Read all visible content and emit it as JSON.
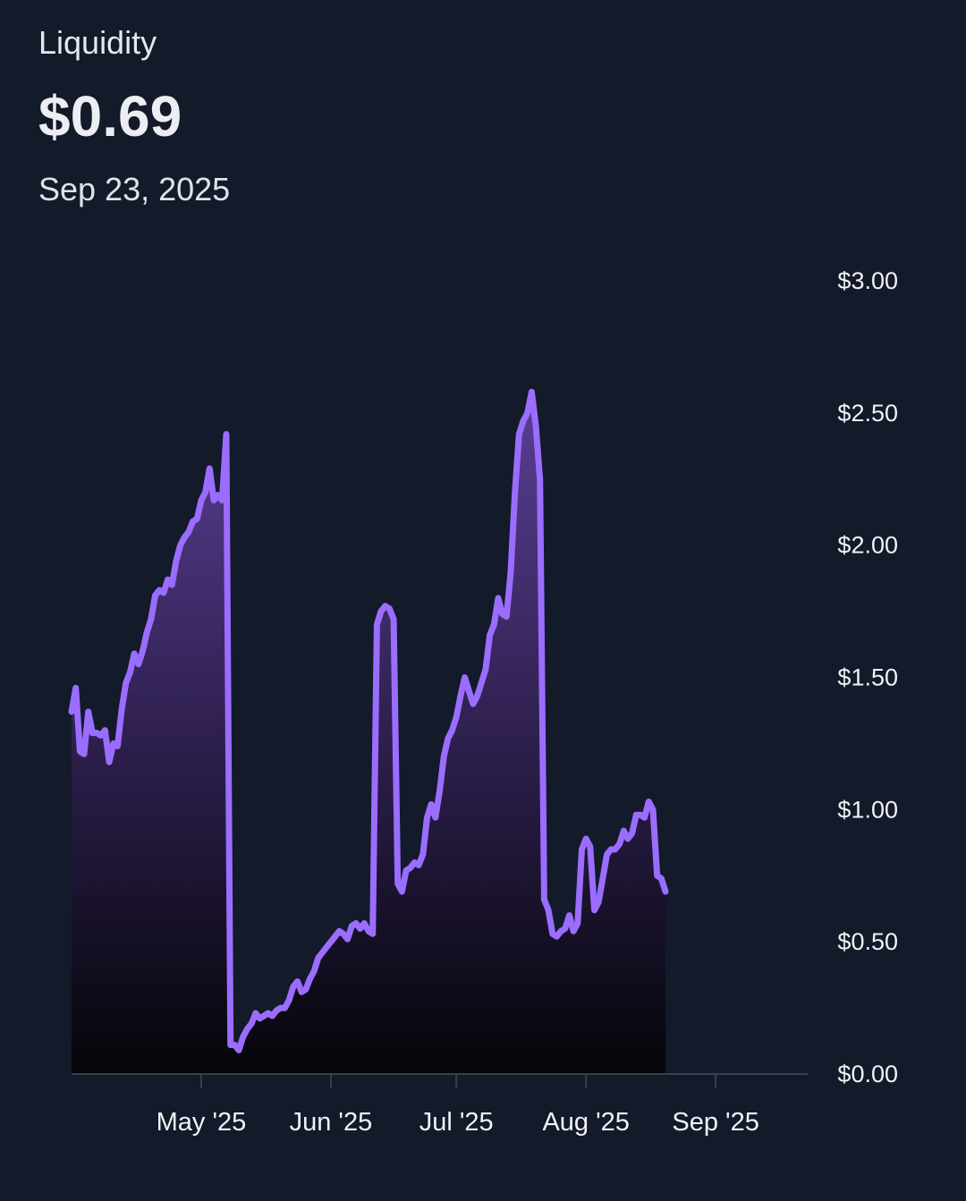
{
  "header": {
    "label": "Liquidity",
    "value": "$0.69",
    "date": "Sep 23, 2025"
  },
  "colors": {
    "background": "#131a2a",
    "line": "#9b6dff",
    "fill_top": "#5a3f94",
    "fill_bottom": "#050509",
    "axis": "#3a3f4b"
  },
  "chart_data": {
    "type": "area",
    "title": "",
    "xlabel": "",
    "ylabel": "",
    "ylim": [
      0,
      3
    ],
    "y_ticks": [
      "$0.00",
      "$0.50",
      "$1.00",
      "$1.50",
      "$2.00",
      "$2.50",
      "$3.00"
    ],
    "y_tick_values": [
      0,
      0.5,
      1,
      1.5,
      2,
      2.5,
      3
    ],
    "x_range": [
      "2025-03-31",
      "2025-09-23"
    ],
    "x_ticks": [
      {
        "date": "2025-05-01",
        "label": "May '25"
      },
      {
        "date": "2025-06-01",
        "label": "Jun '25"
      },
      {
        "date": "2025-07-01",
        "label": "Jul '25"
      },
      {
        "date": "2025-08-01",
        "label": "Aug '25"
      },
      {
        "date": "2025-09-01",
        "label": "Sep '25"
      }
    ],
    "grid": false,
    "series": [
      {
        "points": [
          [
            "2025-03-31",
            1.37
          ],
          [
            "2025-04-01",
            1.46
          ],
          [
            "2025-04-02",
            1.22
          ],
          [
            "2025-04-03",
            1.21
          ],
          [
            "2025-04-04",
            1.37
          ],
          [
            "2025-04-05",
            1.29
          ],
          [
            "2025-04-06",
            1.29
          ],
          [
            "2025-04-07",
            1.28
          ],
          [
            "2025-04-08",
            1.3
          ],
          [
            "2025-04-09",
            1.18
          ],
          [
            "2025-04-10",
            1.25
          ],
          [
            "2025-04-11",
            1.24
          ],
          [
            "2025-04-12",
            1.38
          ],
          [
            "2025-04-13",
            1.48
          ],
          [
            "2025-04-14",
            1.52
          ],
          [
            "2025-04-15",
            1.59
          ],
          [
            "2025-04-16",
            1.55
          ],
          [
            "2025-04-17",
            1.6
          ],
          [
            "2025-04-18",
            1.67
          ],
          [
            "2025-04-19",
            1.72
          ],
          [
            "2025-04-20",
            1.81
          ],
          [
            "2025-04-21",
            1.83
          ],
          [
            "2025-04-22",
            1.82
          ],
          [
            "2025-04-23",
            1.87
          ],
          [
            "2025-04-24",
            1.85
          ],
          [
            "2025-04-25",
            1.94
          ],
          [
            "2025-04-26",
            2.0
          ],
          [
            "2025-04-27",
            2.03
          ],
          [
            "2025-04-28",
            2.05
          ],
          [
            "2025-04-29",
            2.09
          ],
          [
            "2025-04-30",
            2.1
          ],
          [
            "2025-05-01",
            2.17
          ],
          [
            "2025-05-02",
            2.2
          ],
          [
            "2025-05-03",
            2.29
          ],
          [
            "2025-05-04",
            2.17
          ],
          [
            "2025-05-05",
            2.19
          ],
          [
            "2025-05-06",
            2.17
          ],
          [
            "2025-05-07",
            2.42
          ],
          [
            "2025-05-08",
            0.11
          ],
          [
            "2025-05-09",
            0.11
          ],
          [
            "2025-05-10",
            0.09
          ],
          [
            "2025-05-11",
            0.14
          ],
          [
            "2025-05-12",
            0.17
          ],
          [
            "2025-05-13",
            0.19
          ],
          [
            "2025-05-14",
            0.23
          ],
          [
            "2025-05-15",
            0.21
          ],
          [
            "2025-05-16",
            0.22
          ],
          [
            "2025-05-17",
            0.23
          ],
          [
            "2025-05-18",
            0.22
          ],
          [
            "2025-05-19",
            0.24
          ],
          [
            "2025-05-20",
            0.25
          ],
          [
            "2025-05-21",
            0.25
          ],
          [
            "2025-05-22",
            0.28
          ],
          [
            "2025-05-23",
            0.33
          ],
          [
            "2025-05-24",
            0.35
          ],
          [
            "2025-05-25",
            0.31
          ],
          [
            "2025-05-26",
            0.32
          ],
          [
            "2025-05-27",
            0.36
          ],
          [
            "2025-05-28",
            0.39
          ],
          [
            "2025-05-29",
            0.44
          ],
          [
            "2025-05-30",
            0.46
          ],
          [
            "2025-05-31",
            0.48
          ],
          [
            "2025-06-01",
            0.5
          ],
          [
            "2025-06-02",
            0.52
          ],
          [
            "2025-06-03",
            0.54
          ],
          [
            "2025-06-04",
            0.53
          ],
          [
            "2025-06-05",
            0.51
          ],
          [
            "2025-06-06",
            0.56
          ],
          [
            "2025-06-07",
            0.57
          ],
          [
            "2025-06-08",
            0.55
          ],
          [
            "2025-06-09",
            0.57
          ],
          [
            "2025-06-10",
            0.54
          ],
          [
            "2025-06-11",
            0.53
          ],
          [
            "2025-06-12",
            1.7
          ],
          [
            "2025-06-13",
            1.75
          ],
          [
            "2025-06-14",
            1.77
          ],
          [
            "2025-06-15",
            1.76
          ],
          [
            "2025-06-16",
            1.72
          ],
          [
            "2025-06-17",
            0.72
          ],
          [
            "2025-06-18",
            0.69
          ],
          [
            "2025-06-19",
            0.77
          ],
          [
            "2025-06-20",
            0.78
          ],
          [
            "2025-06-21",
            0.8
          ],
          [
            "2025-06-22",
            0.79
          ],
          [
            "2025-06-23",
            0.83
          ],
          [
            "2025-06-24",
            0.97
          ],
          [
            "2025-06-25",
            1.02
          ],
          [
            "2025-06-26",
            0.97
          ],
          [
            "2025-06-27",
            1.07
          ],
          [
            "2025-06-28",
            1.2
          ],
          [
            "2025-06-29",
            1.27
          ],
          [
            "2025-06-30",
            1.3
          ],
          [
            "2025-07-01",
            1.35
          ],
          [
            "2025-07-02",
            1.43
          ],
          [
            "2025-07-03",
            1.5
          ],
          [
            "2025-07-04",
            1.45
          ],
          [
            "2025-07-05",
            1.4
          ],
          [
            "2025-07-06",
            1.43
          ],
          [
            "2025-07-07",
            1.48
          ],
          [
            "2025-07-08",
            1.53
          ],
          [
            "2025-07-09",
            1.66
          ],
          [
            "2025-07-10",
            1.7
          ],
          [
            "2025-07-11",
            1.8
          ],
          [
            "2025-07-12",
            1.74
          ],
          [
            "2025-07-13",
            1.73
          ],
          [
            "2025-07-14",
            1.9
          ],
          [
            "2025-07-15",
            2.2
          ],
          [
            "2025-07-16",
            2.42
          ],
          [
            "2025-07-17",
            2.47
          ],
          [
            "2025-07-18",
            2.5
          ],
          [
            "2025-07-19",
            2.58
          ],
          [
            "2025-07-20",
            2.45
          ],
          [
            "2025-07-21",
            2.25
          ],
          [
            "2025-07-22",
            0.66
          ],
          [
            "2025-07-23",
            0.62
          ],
          [
            "2025-07-24",
            0.53
          ],
          [
            "2025-07-25",
            0.52
          ],
          [
            "2025-07-26",
            0.54
          ],
          [
            "2025-07-27",
            0.55
          ],
          [
            "2025-07-28",
            0.6
          ],
          [
            "2025-07-29",
            0.54
          ],
          [
            "2025-07-30",
            0.57
          ],
          [
            "2025-07-31",
            0.85
          ],
          [
            "2025-08-01",
            0.89
          ],
          [
            "2025-08-02",
            0.86
          ],
          [
            "2025-08-03",
            0.62
          ],
          [
            "2025-08-04",
            0.65
          ],
          [
            "2025-08-05",
            0.74
          ],
          [
            "2025-08-06",
            0.83
          ],
          [
            "2025-08-07",
            0.85
          ],
          [
            "2025-08-08",
            0.85
          ],
          [
            "2025-08-09",
            0.87
          ],
          [
            "2025-08-10",
            0.92
          ],
          [
            "2025-08-11",
            0.89
          ],
          [
            "2025-08-12",
            0.91
          ],
          [
            "2025-08-13",
            0.98
          ],
          [
            "2025-08-14",
            0.98
          ],
          [
            "2025-08-15",
            0.97
          ],
          [
            "2025-08-16",
            1.03
          ],
          [
            "2025-08-17",
            1.0
          ],
          [
            "2025-08-18",
            0.75
          ],
          [
            "2025-08-19",
            0.74
          ],
          [
            "2025-08-20",
            0.69
          ]
        ]
      }
    ]
  }
}
